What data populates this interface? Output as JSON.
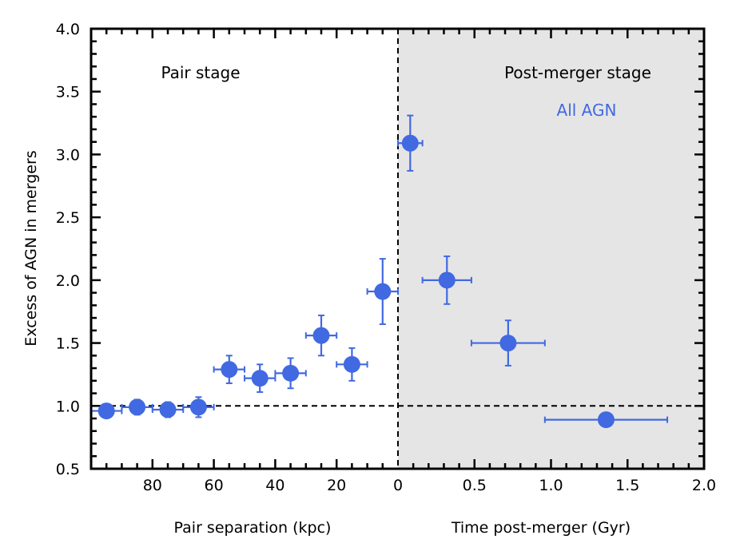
{
  "chart_data": {
    "type": "scatter",
    "ylabel": "Excess of AGN in mergers",
    "ylim": [
      0.5,
      4.0
    ],
    "y_ticks": [
      "0.5",
      "1.0",
      "1.5",
      "2.0",
      "2.5",
      "3.0",
      "3.5",
      "4.0"
    ],
    "colors": {
      "points": "#4169e1",
      "shade": "#e5e5e5"
    },
    "reference_line_y": 1.0,
    "grid": false,
    "panels": [
      {
        "name": "pair",
        "xlabel": "Pair separation (kpc)",
        "xlim": [
          100,
          0
        ],
        "x_reversed": true,
        "x_ticks": [
          "80",
          "60",
          "40",
          "20",
          "0"
        ],
        "stage_label": "Pair stage",
        "points": [
          {
            "x": 95,
            "y": 0.96,
            "xerr": 5,
            "yerr": 0.05
          },
          {
            "x": 85,
            "y": 0.99,
            "xerr": 5,
            "yerr": 0.06
          },
          {
            "x": 75,
            "y": 0.97,
            "xerr": 5,
            "yerr": 0.06
          },
          {
            "x": 65,
            "y": 0.99,
            "xerr": 5,
            "yerr": 0.08
          },
          {
            "x": 55,
            "y": 1.29,
            "xerr": 5,
            "yerr": 0.11
          },
          {
            "x": 45,
            "y": 1.22,
            "xerr": 5,
            "yerr": 0.11
          },
          {
            "x": 35,
            "y": 1.26,
            "xerr": 5,
            "yerr": 0.12
          },
          {
            "x": 25,
            "y": 1.56,
            "xerr": 5,
            "yerr": 0.16
          },
          {
            "x": 15,
            "y": 1.33,
            "xerr": 5,
            "yerr": 0.13
          },
          {
            "x": 5,
            "y": 1.91,
            "xerr": 5,
            "yerr": 0.26
          }
        ]
      },
      {
        "name": "post-merger",
        "xlabel": "Time post-merger (Gyr)",
        "xlim": [
          0.0,
          2.0
        ],
        "x_ticks": [
          "0.5",
          "1.0",
          "1.5",
          "2.0"
        ],
        "stage_label": "Post-merger stage",
        "series_label": "All AGN",
        "shaded": true,
        "points": [
          {
            "x": 0.08,
            "y": 3.09,
            "xerr": 0.08,
            "yerr": 0.22
          },
          {
            "x": 0.32,
            "y": 2.0,
            "xerr": 0.16,
            "yerr": 0.19
          },
          {
            "x": 0.72,
            "y": 1.5,
            "xerr": 0.24,
            "yerr": 0.18
          },
          {
            "x": 1.36,
            "y": 0.89,
            "xerr": 0.4,
            "yerr": 0.0
          }
        ]
      }
    ]
  }
}
